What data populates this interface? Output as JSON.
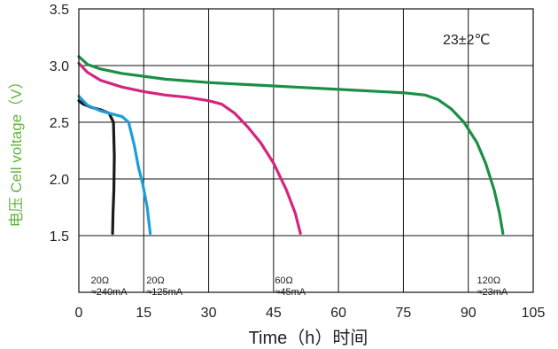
{
  "chart_data": {
    "type": "line",
    "title": "",
    "xlabel": "Time（h）时间",
    "ylabel": "电压 Cell voltage（V）",
    "xlim": [
      0,
      105
    ],
    "ylim": [
      1.0,
      3.5
    ],
    "xticks": [
      0,
      15,
      30,
      45,
      60,
      75,
      90,
      105
    ],
    "yticks": [
      1.5,
      2.0,
      2.5,
      3.0,
      3.5
    ],
    "grid": true,
    "temperature_label": "23±2℃",
    "series": [
      {
        "color": "#1a1a1a",
        "label_lines": [
          "20Ω",
          "≈240mA"
        ],
        "label_anchor": {
          "x": 2.8,
          "y": 1.08
        },
        "points": [
          [
            0,
            2.69
          ],
          [
            1,
            2.66
          ],
          [
            3,
            2.63
          ],
          [
            5,
            2.61
          ],
          [
            7,
            2.58
          ],
          [
            8,
            2.5
          ],
          [
            8.2,
            2.2
          ],
          [
            8.1,
            1.9
          ],
          [
            7.9,
            1.7
          ],
          [
            7.8,
            1.52
          ]
        ]
      },
      {
        "color": "#1e9ed8",
        "label_lines": [
          "20Ω",
          "≈125mA"
        ],
        "label_anchor": {
          "x": 15.6,
          "y": 1.08
        },
        "points": [
          [
            0,
            2.73
          ],
          [
            2,
            2.65
          ],
          [
            5,
            2.6
          ],
          [
            8,
            2.57
          ],
          [
            10,
            2.55
          ],
          [
            11.5,
            2.5
          ],
          [
            12.8,
            2.3
          ],
          [
            13.8,
            2.1
          ],
          [
            14.8,
            1.95
          ],
          [
            15.8,
            1.75
          ],
          [
            16.5,
            1.52
          ]
        ]
      },
      {
        "color": "#d4247f",
        "label_lines": [
          "60Ω",
          "≈45mA"
        ],
        "label_anchor": {
          "x": 45.3,
          "y": 1.08
        },
        "points": [
          [
            0,
            3.02
          ],
          [
            2,
            2.94
          ],
          [
            5,
            2.87
          ],
          [
            10,
            2.81
          ],
          [
            15,
            2.77
          ],
          [
            20,
            2.74
          ],
          [
            25,
            2.72
          ],
          [
            30,
            2.69
          ],
          [
            33,
            2.66
          ],
          [
            36,
            2.58
          ],
          [
            39,
            2.46
          ],
          [
            42,
            2.32
          ],
          [
            45,
            2.14
          ],
          [
            48,
            1.9
          ],
          [
            50,
            1.7
          ],
          [
            51.2,
            1.52
          ]
        ]
      },
      {
        "color": "#1b8f46",
        "label_lines": [
          "120Ω",
          "≈23mA"
        ],
        "label_anchor": {
          "x": 92,
          "y": 1.08
        },
        "points": [
          [
            0,
            3.08
          ],
          [
            2,
            3.01
          ],
          [
            5,
            2.97
          ],
          [
            10,
            2.93
          ],
          [
            20,
            2.88
          ],
          [
            30,
            2.85
          ],
          [
            40,
            2.83
          ],
          [
            50,
            2.81
          ],
          [
            60,
            2.79
          ],
          [
            70,
            2.77
          ],
          [
            75,
            2.76
          ],
          [
            80,
            2.74
          ],
          [
            83,
            2.7
          ],
          [
            86,
            2.62
          ],
          [
            89,
            2.5
          ],
          [
            92,
            2.32
          ],
          [
            94,
            2.14
          ],
          [
            96,
            1.9
          ],
          [
            97.2,
            1.7
          ],
          [
            98,
            1.52
          ]
        ]
      }
    ]
  }
}
